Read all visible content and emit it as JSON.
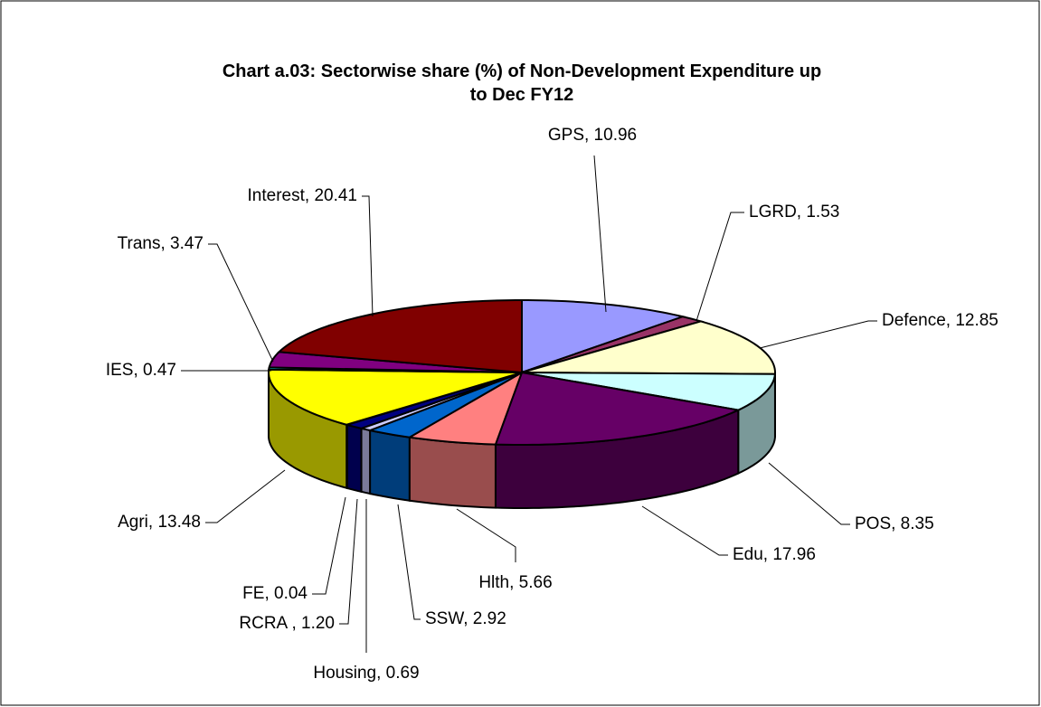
{
  "chart_data": {
    "type": "pie3d",
    "title": "Chart a.03: Sectorwise share (%) of Non-Development Expenditure up to Dec FY12",
    "values": [
      10.96,
      1.53,
      12.85,
      8.35,
      17.96,
      5.66,
      2.92,
      0.69,
      1.2,
      0.04,
      13.48,
      0.47,
      3.47,
      20.41
    ],
    "value_labels": [
      "GPS, 10.96",
      "LGRD, 1.53",
      "Defence, 12.85",
      "POS, 8.35",
      "Edu, 17.96",
      "Hlth, 5.66",
      "SSW, 2.92",
      "Housing, 0.69",
      "RCRA , 1.20",
      "FE, 0.04",
      "Agri, 13.48",
      "IES, 0.47",
      "Trans, 3.47",
      "Interest, 20.41"
    ],
    "colors": [
      "#9999ff",
      "#993366",
      "#ffffcc",
      "#ccffff",
      "#660066",
      "#ff8080",
      "#0066cc",
      "#ccccff",
      "#000080",
      "#ff00ff",
      "#ffff00",
      "#00ffff",
      "#800080",
      "#800000"
    ]
  }
}
